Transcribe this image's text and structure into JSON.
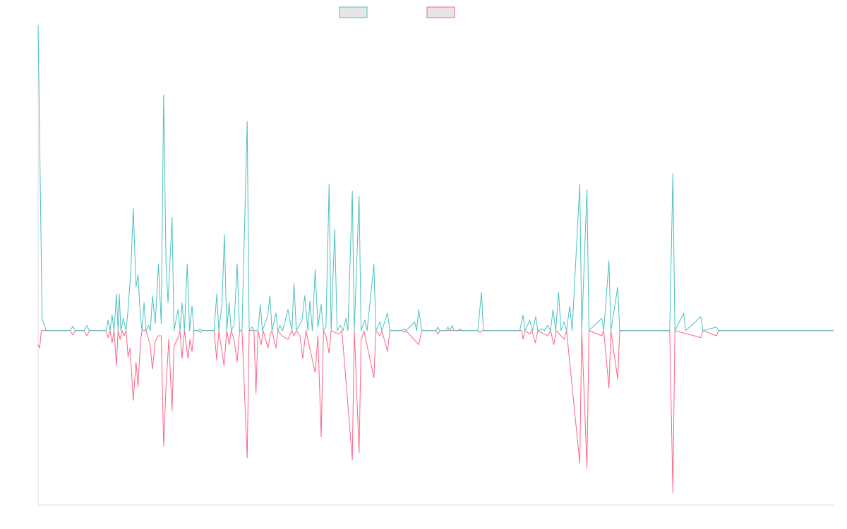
{
  "chart_data": {
    "type": "line",
    "title": "",
    "xlabel": "",
    "ylabel": "",
    "grid": false,
    "legend_position": "top-center",
    "ylim": [
      -100,
      175
    ],
    "x_count": 200,
    "series": [
      {
        "name": "",
        "color": "#4bc0c0",
        "fill": "#e6e6e6",
        "points": [
          [
            0,
            175
          ],
          [
            1,
            7
          ],
          [
            2,
            0
          ],
          [
            8,
            0
          ],
          [
            8.7,
            2.5
          ],
          [
            9.3,
            0
          ],
          [
            11.5,
            0
          ],
          [
            12.2,
            3
          ],
          [
            12.8,
            0
          ],
          [
            17,
            0
          ],
          [
            17.5,
            6
          ],
          [
            18,
            0
          ],
          [
            18.5,
            9
          ],
          [
            19,
            0
          ],
          [
            19.6,
            21
          ],
          [
            20,
            0
          ],
          [
            20.3,
            21
          ],
          [
            20.7,
            0
          ],
          [
            21.3,
            7
          ],
          [
            22,
            0
          ],
          [
            22.5,
            12
          ],
          [
            23.2,
            35
          ],
          [
            23.8,
            70
          ],
          [
            24.5,
            25
          ],
          [
            25,
            32
          ],
          [
            25.6,
            8
          ],
          [
            26,
            0
          ],
          [
            26.5,
            16
          ],
          [
            27,
            0
          ],
          [
            27.6,
            3
          ],
          [
            28.1,
            0
          ],
          [
            28.6,
            20
          ],
          [
            29.3,
            4
          ],
          [
            30.1,
            38
          ],
          [
            30.8,
            4
          ],
          [
            31.4,
            135
          ],
          [
            32,
            38
          ],
          [
            32.5,
            16
          ],
          [
            33.5,
            65
          ],
          [
            34,
            0
          ],
          [
            35,
            12
          ],
          [
            35.5,
            0
          ],
          [
            36,
            16
          ],
          [
            36.6,
            0
          ],
          [
            37.3,
            38
          ],
          [
            37.9,
            0
          ],
          [
            38.5,
            14
          ],
          [
            39,
            0
          ],
          [
            40,
            0
          ],
          [
            40.5,
            1
          ],
          [
            41,
            0
          ],
          [
            44,
            0
          ],
          [
            44.7,
            21
          ],
          [
            45.2,
            0
          ],
          [
            46,
            15
          ],
          [
            46.6,
            55
          ],
          [
            47.2,
            0
          ],
          [
            47.8,
            16
          ],
          [
            48.3,
            0
          ],
          [
            49,
            3
          ],
          [
            49.8,
            38
          ],
          [
            50.4,
            0
          ],
          [
            51,
            0
          ],
          [
            52.3,
            120
          ],
          [
            52.8,
            0
          ],
          [
            53.5,
            2
          ],
          [
            54,
            0
          ],
          [
            55,
            0
          ],
          [
            55.6,
            15
          ],
          [
            56.1,
            0
          ],
          [
            57.4,
            8
          ],
          [
            58,
            20
          ],
          [
            58.5,
            0
          ],
          [
            59.5,
            10
          ],
          [
            60,
            0
          ],
          [
            60.5,
            3
          ],
          [
            61.2,
            0
          ],
          [
            62.5,
            12
          ],
          [
            63.5,
            0
          ],
          [
            64,
            27
          ],
          [
            64.6,
            0
          ],
          [
            66,
            6
          ],
          [
            66.7,
            20
          ],
          [
            67.5,
            0
          ],
          [
            68,
            17
          ],
          [
            68.6,
            0
          ],
          [
            69.3,
            35
          ],
          [
            70,
            2
          ],
          [
            70.8,
            15
          ],
          [
            71.4,
            0
          ],
          [
            72,
            2
          ],
          [
            72.8,
            84
          ],
          [
            73.3,
            0
          ],
          [
            74.2,
            58
          ],
          [
            74.8,
            0
          ],
          [
            75.6,
            3
          ],
          [
            76.3,
            0
          ],
          [
            77,
            7
          ],
          [
            77.5,
            0
          ],
          [
            78.6,
            80
          ],
          [
            79.1,
            0
          ],
          [
            80.3,
            77
          ],
          [
            80.8,
            0
          ],
          [
            81.7,
            6
          ],
          [
            82.3,
            0
          ],
          [
            84,
            38
          ],
          [
            84.5,
            0
          ],
          [
            85.5,
            5
          ],
          [
            86,
            0
          ],
          [
            87.4,
            10
          ],
          [
            88,
            0
          ],
          [
            91,
            0
          ],
          [
            91.6,
            1
          ],
          [
            92,
            0
          ],
          [
            94.2,
            5
          ],
          [
            94.7,
            0
          ],
          [
            95.2,
            12
          ],
          [
            96,
            0
          ],
          [
            99.5,
            0
          ],
          [
            100,
            2
          ],
          [
            100.5,
            0
          ],
          [
            102,
            0
          ],
          [
            102.5,
            2
          ],
          [
            103,
            0
          ],
          [
            103.6,
            3
          ],
          [
            104,
            0
          ],
          [
            105,
            0
          ],
          [
            105.6,
            1
          ],
          [
            106,
            0
          ],
          [
            110,
            0
          ],
          [
            110.9,
            22
          ],
          [
            111.4,
            0
          ],
          [
            115,
            0
          ],
          [
            115.5,
            0
          ],
          [
            116,
            0
          ],
          [
            120.5,
            0
          ],
          [
            121.3,
            9
          ],
          [
            121.8,
            0
          ],
          [
            123,
            6
          ],
          [
            123.7,
            0
          ],
          [
            124.5,
            8
          ],
          [
            125,
            0
          ],
          [
            126.2,
            1
          ],
          [
            126.7,
            0
          ],
          [
            127.5,
            3
          ],
          [
            128.2,
            0
          ],
          [
            128.8,
            12
          ],
          [
            129.5,
            0
          ],
          [
            130.2,
            22
          ],
          [
            130.8,
            0
          ],
          [
            131.6,
            5
          ],
          [
            132.2,
            0
          ],
          [
            133,
            14
          ],
          [
            133.6,
            0
          ],
          [
            135.5,
            84
          ],
          [
            136,
            0
          ],
          [
            137.3,
            81
          ],
          [
            137.8,
            0
          ],
          [
            141,
            7
          ],
          [
            141.5,
            0
          ],
          [
            142.8,
            40
          ],
          [
            143.3,
            0
          ],
          [
            145,
            25
          ],
          [
            145.5,
            0
          ],
          [
            146.5,
            0
          ],
          [
            158,
            0
          ],
          [
            158.8,
            90
          ],
          [
            159.3,
            0
          ],
          [
            161.5,
            10
          ],
          [
            162,
            0
          ],
          [
            165.8,
            8
          ],
          [
            166.3,
            0
          ],
          [
            169.7,
            2
          ],
          [
            170.2,
            0
          ],
          [
            179.5,
            0
          ],
          [
            180,
            0
          ],
          [
            180.5,
            0
          ],
          [
            199,
            0
          ]
        ]
      },
      {
        "name": "",
        "color": "#ff6384",
        "fill": "#e6e6e6",
        "points": [
          [
            0,
            -8
          ],
          [
            0.4,
            -10
          ],
          [
            0.8,
            0
          ],
          [
            8,
            0
          ],
          [
            8.7,
            -2.5
          ],
          [
            9.3,
            0
          ],
          [
            11.5,
            0
          ],
          [
            12.2,
            -3
          ],
          [
            12.8,
            0
          ],
          [
            17,
            0
          ],
          [
            17.5,
            -4
          ],
          [
            18,
            0
          ],
          [
            18.5,
            -7
          ],
          [
            19,
            0
          ],
          [
            19.6,
            -20
          ],
          [
            20,
            0
          ],
          [
            20.5,
            -5
          ],
          [
            21,
            0
          ],
          [
            21.5,
            -3
          ],
          [
            22,
            0
          ],
          [
            22.5,
            -15
          ],
          [
            23,
            -10
          ],
          [
            23.8,
            -40
          ],
          [
            24.5,
            -18
          ],
          [
            25,
            -32
          ],
          [
            25.6,
            -6
          ],
          [
            26,
            0
          ],
          [
            27,
            0
          ],
          [
            28,
            -8
          ],
          [
            28.6,
            -22
          ],
          [
            29.3,
            -6
          ],
          [
            30,
            -3
          ],
          [
            30.8,
            -3
          ],
          [
            31.4,
            -66
          ],
          [
            32,
            -32
          ],
          [
            32.7,
            -5
          ],
          [
            33.5,
            -46
          ],
          [
            34,
            -9
          ],
          [
            35,
            -4
          ],
          [
            35.5,
            0
          ],
          [
            36,
            -16
          ],
          [
            36.6,
            0
          ],
          [
            37.5,
            -16
          ],
          [
            38,
            -5
          ],
          [
            38.5,
            -12
          ],
          [
            39,
            0
          ],
          [
            40,
            0
          ],
          [
            40.5,
            -1
          ],
          [
            41,
            0
          ],
          [
            44,
            0
          ],
          [
            44.7,
            -17
          ],
          [
            45.2,
            0
          ],
          [
            45.8,
            -9
          ],
          [
            46.5,
            -20
          ],
          [
            47.2,
            0
          ],
          [
            47.8,
            -8
          ],
          [
            48.3,
            0
          ],
          [
            49,
            -5
          ],
          [
            49.8,
            -18
          ],
          [
            50.4,
            0
          ],
          [
            51,
            0
          ],
          [
            52.3,
            -73
          ],
          [
            52.8,
            0
          ],
          [
            54,
            0
          ],
          [
            54.5,
            -36
          ],
          [
            55,
            0
          ],
          [
            55.8,
            -8
          ],
          [
            56.3,
            0
          ],
          [
            57.5,
            -10
          ],
          [
            58,
            -3
          ],
          [
            58.5,
            0
          ],
          [
            59.5,
            -10
          ],
          [
            60,
            0
          ],
          [
            61,
            -3
          ],
          [
            62.5,
            -5
          ],
          [
            63.5,
            0
          ],
          [
            64,
            -3
          ],
          [
            64.6,
            0
          ],
          [
            65.5,
            -3
          ],
          [
            66.2,
            -16
          ],
          [
            67,
            0
          ],
          [
            69.3,
            -24
          ],
          [
            70,
            -3
          ],
          [
            70.8,
            -61
          ],
          [
            71.4,
            0
          ],
          [
            72,
            -3
          ],
          [
            72.8,
            -13
          ],
          [
            73.3,
            0
          ],
          [
            75.2,
            -2
          ],
          [
            76,
            0
          ],
          [
            78.6,
            -74
          ],
          [
            79.1,
            0
          ],
          [
            80.3,
            -70
          ],
          [
            80.8,
            -6
          ],
          [
            81.5,
            0
          ],
          [
            84,
            -27
          ],
          [
            84.5,
            0
          ],
          [
            85.5,
            -3
          ],
          [
            86,
            0
          ],
          [
            87.4,
            -12
          ],
          [
            88,
            0
          ],
          [
            91,
            0
          ],
          [
            91.6,
            -1
          ],
          [
            92,
            0
          ],
          [
            95.2,
            -8
          ],
          [
            96,
            0
          ],
          [
            99.5,
            0
          ],
          [
            100,
            -2
          ],
          [
            100.5,
            0
          ],
          [
            110,
            0
          ],
          [
            110.5,
            -1
          ],
          [
            111,
            0
          ],
          [
            121,
            0
          ],
          [
            121.3,
            -5
          ],
          [
            121.8,
            0
          ],
          [
            123,
            -2
          ],
          [
            123.5,
            0
          ],
          [
            124.4,
            -7
          ],
          [
            125,
            0
          ],
          [
            127.5,
            -3
          ],
          [
            128.2,
            0
          ],
          [
            129,
            -8
          ],
          [
            129.6,
            0
          ],
          [
            131.6,
            -5
          ],
          [
            132.2,
            0
          ],
          [
            135.5,
            -76
          ],
          [
            136,
            0
          ],
          [
            137.3,
            -79
          ],
          [
            137.8,
            0
          ],
          [
            141,
            -3
          ],
          [
            141.5,
            0
          ],
          [
            142.8,
            -33
          ],
          [
            143.3,
            0
          ],
          [
            145,
            -28
          ],
          [
            145.5,
            0
          ],
          [
            146.5,
            0
          ],
          [
            158,
            0
          ],
          [
            158.8,
            -93
          ],
          [
            159.3,
            0
          ],
          [
            165.8,
            -4
          ],
          [
            166.3,
            0
          ],
          [
            169.7,
            -3
          ],
          [
            170.2,
            0
          ],
          [
            199,
            0
          ]
        ]
      }
    ]
  }
}
